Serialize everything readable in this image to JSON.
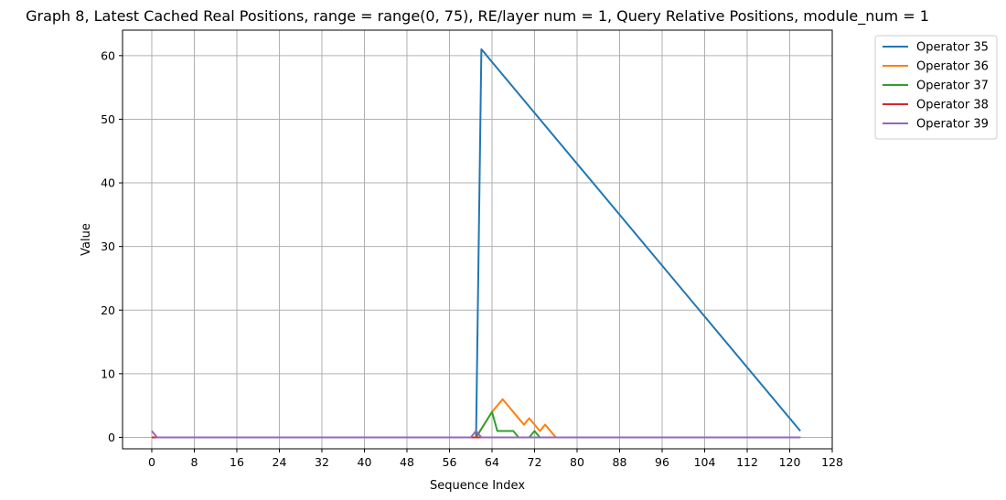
{
  "chart_data": {
    "type": "line",
    "title": "Graph 8, Latest Cached Real Positions, range = range(0, 75), RE/layer num = 1, Query Relative Positions, module_num = 1",
    "xlabel": "Sequence Index",
    "ylabel": "Value",
    "xlim": [
      -5.5,
      128
    ],
    "ylim": [
      -1.8,
      64
    ],
    "xticks": [
      0,
      8,
      16,
      24,
      32,
      40,
      48,
      56,
      64,
      72,
      80,
      88,
      96,
      104,
      112,
      120,
      128
    ],
    "yticks": [
      0,
      10,
      20,
      30,
      40,
      50,
      60
    ],
    "grid": true,
    "legend_position": "outside-top-right",
    "series": [
      {
        "name": "Operator 35",
        "color": "#1f77b4",
        "points": [
          [
            0,
            0
          ],
          [
            61,
            0
          ],
          [
            62,
            61
          ],
          [
            122,
            1
          ]
        ]
      },
      {
        "name": "Operator 36",
        "color": "#ff7f0e",
        "points": [
          [
            0,
            0
          ],
          [
            61,
            0
          ],
          [
            64,
            4
          ],
          [
            66,
            6
          ],
          [
            70,
            2
          ],
          [
            71,
            3
          ],
          [
            73,
            1
          ],
          [
            74,
            2
          ],
          [
            76,
            0
          ],
          [
            122,
            0
          ]
        ]
      },
      {
        "name": "Operator 37",
        "color": "#2ca02c",
        "points": [
          [
            0,
            0
          ],
          [
            61,
            0
          ],
          [
            64,
            4
          ],
          [
            65,
            1
          ],
          [
            68,
            1
          ],
          [
            69,
            0
          ],
          [
            71,
            0
          ],
          [
            72,
            1
          ],
          [
            73,
            0
          ],
          [
            122,
            0
          ]
        ]
      },
      {
        "name": "Operator 38",
        "color": "#d62728",
        "points": [
          [
            0,
            0
          ],
          [
            122,
            0
          ]
        ]
      },
      {
        "name": "Operator 39",
        "color": "#9467bd",
        "points": [
          [
            0,
            1
          ],
          [
            1,
            0
          ],
          [
            60,
            0
          ],
          [
            61,
            1
          ],
          [
            62,
            0
          ],
          [
            122,
            0
          ]
        ]
      }
    ]
  }
}
